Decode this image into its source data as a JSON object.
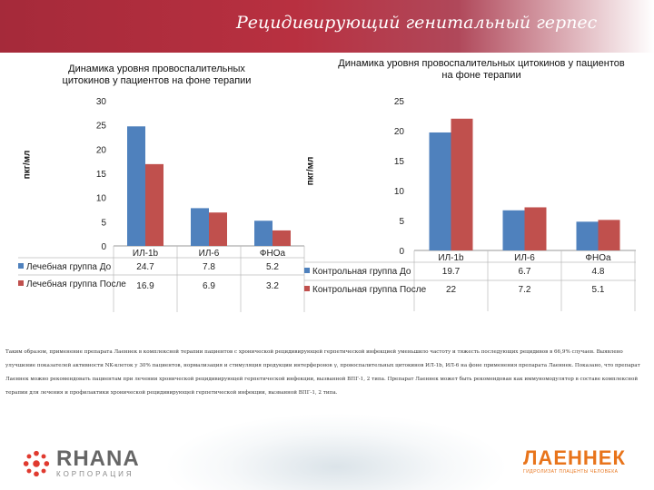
{
  "header": {
    "title": "Рецидивирующий генитальный герпес"
  },
  "chart_data": [
    {
      "type": "bar",
      "title": "Динамика уровня провоспалительных цитокинов у пациентов на фоне терапии",
      "ylabel": "пкг/мл",
      "categories": [
        "ИЛ-1b",
        "ИЛ-6",
        "ФНОa"
      ],
      "ylim": [
        0,
        30
      ],
      "yticks": [
        "0",
        "5",
        "10",
        "15",
        "20",
        "25",
        "30"
      ],
      "series": [
        {
          "name": "Лечебная группа До",
          "color": "#4f81bd",
          "values": [
            24.7,
            7.8,
            5.2
          ],
          "labels": [
            "24.7",
            "7.8",
            "5.2"
          ]
        },
        {
          "name": "Лечебная группа После",
          "color": "#c0504d",
          "values": [
            16.9,
            6.9,
            3.2
          ],
          "labels": [
            "16.9",
            "6.9",
            "3.2"
          ]
        }
      ]
    },
    {
      "type": "bar",
      "title": "Динамика уровня провоспалительных цитокинов у пациентов на фоне терапии",
      "ylabel": "пкг/мл",
      "categories": [
        "ИЛ-1b",
        "ИЛ-6",
        "ФНОa"
      ],
      "ylim": [
        0,
        25
      ],
      "yticks": [
        "0",
        "5",
        "10",
        "15",
        "20",
        "25"
      ],
      "series": [
        {
          "name": "Контрольная группа До",
          "color": "#4f81bd",
          "values": [
            19.7,
            6.7,
            4.8
          ],
          "labels": [
            "19.7",
            "6.7",
            "4.8"
          ]
        },
        {
          "name": "Контрольная группа После",
          "color": "#c0504d",
          "values": [
            22,
            7.2,
            5.1
          ],
          "labels": [
            "22",
            "7.2",
            "5.1"
          ]
        }
      ]
    }
  ],
  "note": "Таким образом, применение препарата Лаеннек в комплексной терапии пациентов с хронической рецидивирующей герпетической инфекцией уменьшило частоту и тяжесть последующих рецидивов в 66,9% случаев. Выявлено улучшение показателей активности NK-клеток у 30% пациентов, нормализация и стимуляция продукции интерферонов γ, провоспалительных цитокинов ИЛ-1b, ИЛ-6 на фоне применения препарата Лаеннек. Показано, что препарат Лаеннек можно рекомендовать пациентам при лечении хронической рецидивирующей герпетической инфекции, вызванной ВПГ-1, 2 типа. Препарат Лаеннек может быть рекомендован как иммуномодулятор в составе комплексной терапии для лечения и профилактики хронической рецидивирующей герпетической инфекции, вызванной ВПГ-1, 2 типа.",
  "logos": {
    "rhana_name": "RHANA",
    "rhana_sub": "КОРПОРАЦИЯ",
    "laennec_name": "ЛАЕННЕК",
    "laennec_sub": "ГИДРОЛИЗАТ ПЛАЦЕНТЫ ЧЕЛОВЕКА",
    "rhana_color": "#e03a2f",
    "laennec_color": "#e8741b"
  }
}
